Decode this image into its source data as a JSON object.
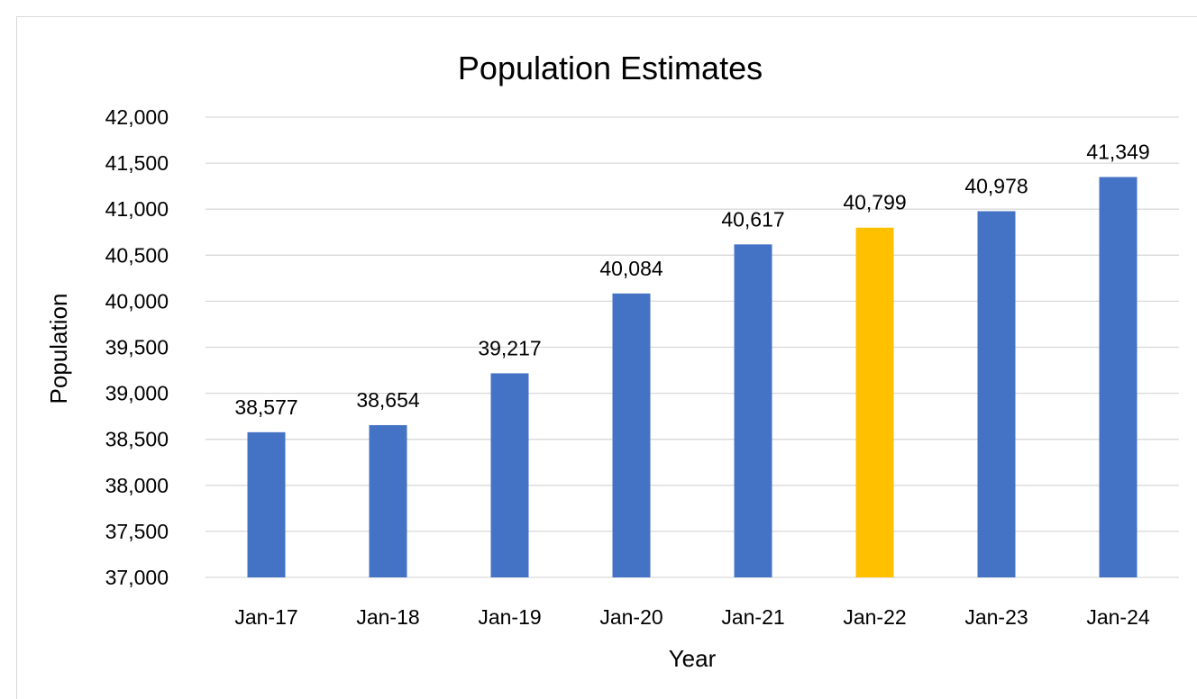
{
  "chart_data": {
    "type": "bar",
    "title": "Population Estimates",
    "xlabel": "Year",
    "ylabel": "Population",
    "categories": [
      "Jan-17",
      "Jan-18",
      "Jan-19",
      "Jan-20",
      "Jan-21",
      "Jan-22",
      "Jan-23",
      "Jan-24"
    ],
    "values": [
      38577,
      38654,
      39217,
      40084,
      40617,
      40799,
      40978,
      41349
    ],
    "value_labels": [
      "38,577",
      "38,654",
      "39,217",
      "40,084",
      "40,617",
      "40,799",
      "40,978",
      "41,349"
    ],
    "ylim": [
      37000,
      42000
    ],
    "yticks": [
      37000,
      37500,
      38000,
      38500,
      39000,
      39500,
      40000,
      40500,
      41000,
      41500,
      42000
    ],
    "ytick_labels": [
      "37,000",
      "37,500",
      "38,000",
      "38,500",
      "39,000",
      "39,500",
      "40,000",
      "40,500",
      "41,000",
      "41,500",
      "42,000"
    ],
    "grid": true,
    "legend": "none",
    "colors": {
      "bar": "#4472c4",
      "highlight": "#ffc000",
      "gridline": "#d9d9d9"
    },
    "highlight_category": "Jan-22"
  }
}
